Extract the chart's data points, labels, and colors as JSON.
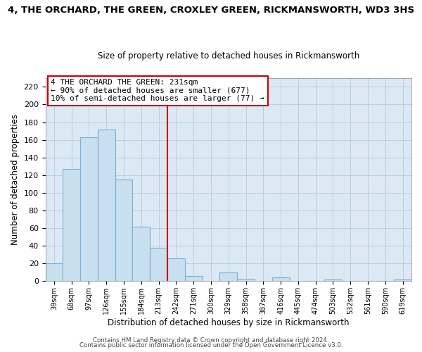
{
  "title": "4, THE ORCHARD, THE GREEN, CROXLEY GREEN, RICKMANSWORTH, WD3 3HS",
  "subtitle": "Size of property relative to detached houses in Rickmansworth",
  "xlabel": "Distribution of detached houses by size in Rickmansworth",
  "ylabel": "Number of detached properties",
  "bar_labels": [
    "39sqm",
    "68sqm",
    "97sqm",
    "126sqm",
    "155sqm",
    "184sqm",
    "213sqm",
    "242sqm",
    "271sqm",
    "300sqm",
    "329sqm",
    "358sqm",
    "387sqm",
    "416sqm",
    "445sqm",
    "474sqm",
    "503sqm",
    "532sqm",
    "561sqm",
    "590sqm",
    "619sqm"
  ],
  "bar_heights": [
    20,
    127,
    163,
    172,
    115,
    62,
    38,
    26,
    6,
    0,
    10,
    3,
    0,
    4,
    0,
    0,
    2,
    0,
    0,
    0,
    2
  ],
  "bar_color": "#c8dff0",
  "bar_edge_color": "#7bafd4",
  "vline_x": 6.5,
  "vline_color": "#cc0000",
  "annotation_title": "4 THE ORCHARD THE GREEN: 231sqm",
  "annotation_line1": "← 90% of detached houses are smaller (677)",
  "annotation_line2": "10% of semi-detached houses are larger (77) →",
  "annotation_box_color": "#ffffff",
  "annotation_box_edge": "#cc0000",
  "ylim": [
    0,
    230
  ],
  "yticks": [
    0,
    20,
    40,
    60,
    80,
    100,
    120,
    140,
    160,
    180,
    200,
    220
  ],
  "footer1": "Contains HM Land Registry data © Crown copyright and database right 2024.",
  "footer2": "Contains public sector information licensed under the Open Government Licence v3.0.",
  "background_color": "#ffffff",
  "plot_bg_color": "#dce9f5",
  "grid_color": "#b8cfe0"
}
